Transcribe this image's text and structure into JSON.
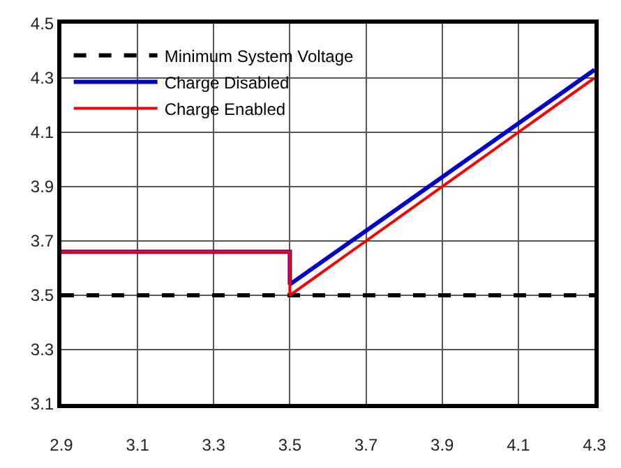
{
  "chart_data": {
    "type": "line",
    "series": [
      {
        "name": "Minimum System Voltage",
        "color": "#000000",
        "line_style": "dashed",
        "x": [
          2.9,
          4.3
        ],
        "values": [
          3.5,
          3.5
        ]
      },
      {
        "name": "Charge Disabled",
        "color": "#0000cc",
        "x": [
          2.9,
          3.5,
          3.5,
          4.3
        ],
        "values": [
          3.66,
          3.66,
          3.54,
          4.33
        ]
      },
      {
        "name": "Charge Enabled",
        "color": "#ff0000",
        "x": [
          2.9,
          3.5,
          3.5,
          4.3
        ],
        "values": [
          3.66,
          3.66,
          3.5,
          4.3
        ]
      }
    ],
    "xlim": [
      2.9,
      4.3
    ],
    "xticks": [
      2.9,
      3.1,
      3.3,
      3.5,
      3.7,
      3.9,
      4.1,
      4.3
    ],
    "ylim": [
      3.1,
      4.5
    ],
    "yticks": [
      3.1,
      3.3,
      3.5,
      3.7,
      3.9,
      4.1,
      4.3,
      4.5
    ],
    "grid": true,
    "legend": "top left",
    "marker": "none"
  }
}
